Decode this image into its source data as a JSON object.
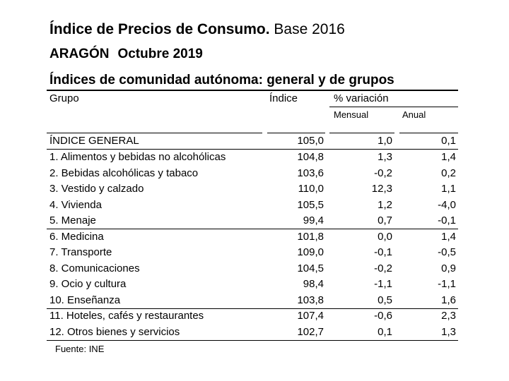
{
  "title": {
    "bold": "Índice de Precios de Consumo.",
    "normal": "Base 2016"
  },
  "region": "ARAGÓN",
  "month": "Octubre 2019",
  "table_title": "Índices de comunidad autónoma: general y de grupos",
  "headers": {
    "grupo": "Grupo",
    "indice": "Índice",
    "variacion": "% variación",
    "mensual": "Mensual",
    "anual": "Anual"
  },
  "rows": [
    {
      "name": "ÍNDICE GENERAL",
      "indice": "105,0",
      "mensual": "1,0",
      "anual": "0,1"
    },
    {
      "name": "1. Alimentos y bebidas no alcohólicas",
      "indice": "104,8",
      "mensual": "1,3",
      "anual": "1,4"
    },
    {
      "name": "2. Bebidas alcohólicas y tabaco",
      "indice": "103,6",
      "mensual": "-0,2",
      "anual": "0,2"
    },
    {
      "name": "3. Vestido y calzado",
      "indice": "110,0",
      "mensual": "12,3",
      "anual": "1,1"
    },
    {
      "name": "4. Vivienda",
      "indice": "105,5",
      "mensual": "1,2",
      "anual": "-4,0"
    },
    {
      "name": "5. Menaje",
      "indice": "99,4",
      "mensual": "0,7",
      "anual": "-0,1"
    },
    {
      "name": "6. Medicina",
      "indice": "101,8",
      "mensual": "0,0",
      "anual": "1,4"
    },
    {
      "name": "7. Transporte",
      "indice": "109,0",
      "mensual": "-0,1",
      "anual": "-0,5"
    },
    {
      "name": "8. Comunicaciones",
      "indice": "104,5",
      "mensual": "-0,2",
      "anual": "0,9"
    },
    {
      "name": "9. Ocio y cultura",
      "indice": "98,4",
      "mensual": "-1,1",
      "anual": "-1,1"
    },
    {
      "name": "10. Enseñanza",
      "indice": "103,8",
      "mensual": "0,5",
      "anual": "1,6"
    },
    {
      "name": "11. Hoteles, cafés y restaurantes",
      "indice": "107,4",
      "mensual": "-0,6",
      "anual": "2,3"
    },
    {
      "name": "12. Otros bienes y servicios",
      "indice": "102,7",
      "mensual": "0,1",
      "anual": "1,3"
    }
  ],
  "source": "Fuente: INE"
}
